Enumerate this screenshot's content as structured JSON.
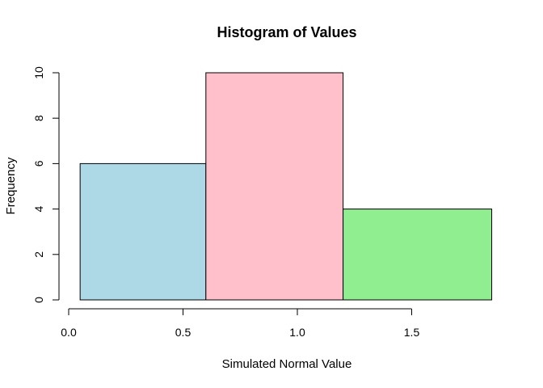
{
  "chart_data": {
    "type": "bar",
    "title": "Histogram of Values",
    "xlabel": "Simulated Normal Value",
    "ylabel": "Frequency",
    "bins": [
      {
        "x_start": 0.05,
        "x_end": 0.6,
        "count": 6,
        "color": "#add8e6"
      },
      {
        "x_start": 0.6,
        "x_end": 1.2,
        "count": 10,
        "color": "#ffc0cb"
      },
      {
        "x_start": 1.2,
        "x_end": 1.85,
        "count": 4,
        "color": "#90ee90"
      }
    ],
    "xlim": [
      0.0,
      1.5
    ],
    "ylim": [
      0,
      10
    ],
    "xticks": [
      "0.0",
      "0.5",
      "1.0",
      "1.5"
    ],
    "yticks": [
      "0",
      "2",
      "4",
      "6",
      "8",
      "10"
    ],
    "grid": false,
    "legend": "none"
  }
}
